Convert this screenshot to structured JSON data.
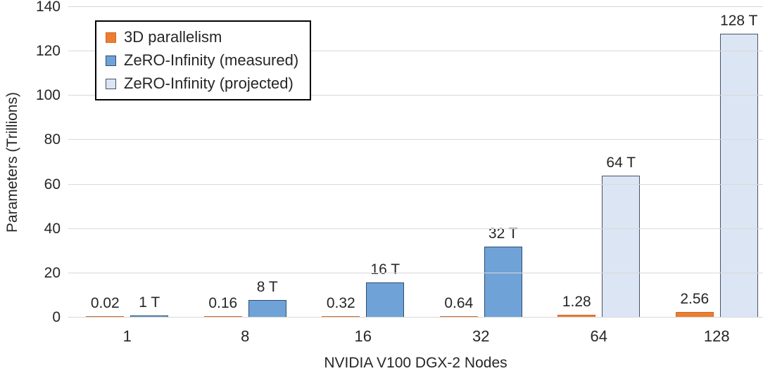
{
  "chart_data": {
    "type": "bar",
    "title": "",
    "xlabel": "NVIDIA V100 DGX-2 Nodes",
    "ylabel": "Parameters (Trillions)",
    "ylim": [
      0,
      140
    ],
    "yticks": [
      0,
      20,
      40,
      60,
      80,
      100,
      120,
      140
    ],
    "grid": true,
    "legend_position": "top-left",
    "categories": [
      "1",
      "8",
      "16",
      "32",
      "64",
      "128"
    ],
    "series": [
      {
        "name": "3D parallelism",
        "color": "#ED7D31",
        "border_color": "#CB6A27",
        "values": [
          0.02,
          0.16,
          0.32,
          0.64,
          1.28,
          2.56
        ],
        "data_labels": [
          "0.02",
          "0.16",
          "0.32",
          "0.64",
          "1.28",
          "2.56"
        ]
      },
      {
        "name": "ZeRO-Infinity (measured)",
        "color": "#6FA3D8",
        "border_color": "#2E4D6E",
        "values": [
          1,
          8,
          16,
          32,
          null,
          null
        ],
        "data_labels": [
          "1 T",
          "8 T",
          "16 T",
          "32 T",
          null,
          null
        ]
      },
      {
        "name": "ZeRO-Infinity (projected)",
        "color": "#DCE5F3",
        "border_color": "#44546A",
        "values": [
          null,
          null,
          null,
          null,
          64,
          128
        ],
        "data_labels": [
          null,
          null,
          null,
          null,
          "64 T",
          "128 T"
        ]
      }
    ],
    "colors": {
      "text": "#262626",
      "gridline": "#D9D9D9",
      "legend_border": "#000000",
      "background": "#FFFFFF"
    }
  }
}
